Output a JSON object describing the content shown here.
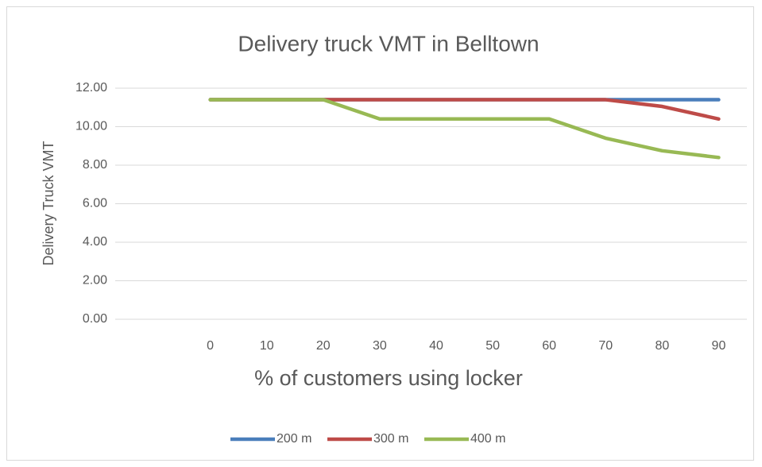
{
  "chart_data": {
    "type": "line",
    "title": "Delivery truck VMT in Belltown",
    "x_label": "% of customers using locker",
    "y_label": "Delivery Truck VMT",
    "categories": [
      null,
      "0",
      "10",
      "20",
      "30",
      "40",
      "50",
      "60",
      "70",
      "80",
      "90"
    ],
    "series": [
      {
        "name": "200 m",
        "color": "#4a7ebb",
        "values": [
          null,
          11.4,
          11.4,
          11.4,
          11.4,
          11.4,
          11.4,
          11.4,
          11.4,
          11.4,
          11.4
        ]
      },
      {
        "name": "300 m",
        "color": "#be4b48",
        "values": [
          null,
          11.4,
          11.4,
          11.4,
          11.4,
          11.4,
          11.4,
          11.4,
          11.4,
          11.05,
          10.4
        ]
      },
      {
        "name": "400 m",
        "color": "#98b954",
        "values": [
          null,
          11.4,
          11.4,
          11.4,
          10.4,
          10.4,
          10.4,
          10.4,
          9.4,
          8.75,
          8.4
        ]
      }
    ],
    "ylim": [
      0,
      12
    ],
    "yticks": [
      {
        "value": 0,
        "label": "0.00"
      },
      {
        "value": 2,
        "label": "2.00"
      },
      {
        "value": 4,
        "label": "4.00"
      },
      {
        "value": 6,
        "label": "6.00"
      },
      {
        "value": 8,
        "label": "8.00"
      },
      {
        "value": 10,
        "label": "10.00"
      },
      {
        "value": 12,
        "label": "12.00"
      }
    ],
    "grid": true,
    "legend": "bottom"
  }
}
